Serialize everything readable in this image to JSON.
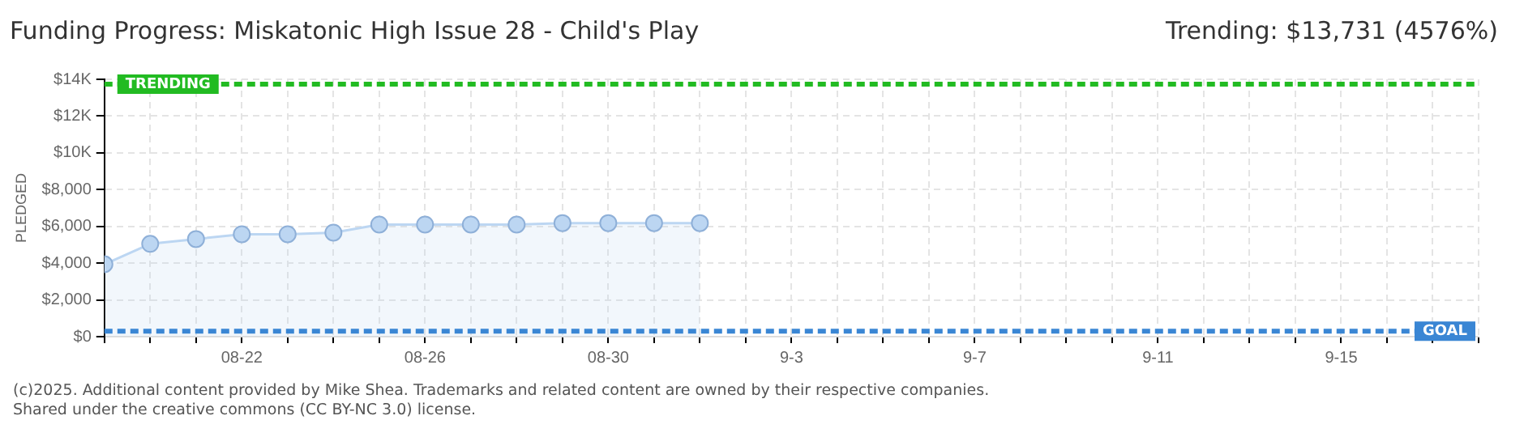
{
  "chart_data": {
    "type": "area",
    "title": "Funding Progress: Miskatonic High Issue 28 - Child's Play",
    "subtitle": "Trending: $13,731 (4576%)",
    "ylabel": "PLEDGED",
    "annotations": [
      "(c)2025. Additional content provided by Mike Shea. Trademarks and related content are owned by their respective companies.",
      "Shared under the creative commons (CC BY-NC 3.0) license."
    ],
    "x": [
      "2025-08-19",
      "2025-08-20",
      "2025-08-21",
      "2025-08-22",
      "2025-08-23",
      "2025-08-24",
      "2025-08-25",
      "2025-08-26",
      "2025-08-27",
      "2025-08-28",
      "2025-08-29",
      "2025-08-30",
      "2025-08-31",
      "2025-09-01"
    ],
    "series": [
      {
        "color": "#bcd6f2",
        "values": [
          3940,
          5050,
          5310,
          5570,
          5570,
          5660,
          6100,
          6100,
          6100,
          6100,
          6180,
          6180,
          6180,
          6180
        ]
      }
    ],
    "xlim": [
      "2025-08-19",
      "2025-09-18"
    ],
    "xticks": [
      {
        "value": "2025-08-19",
        "label": null
      },
      {
        "value": "2025-08-20",
        "label": null
      },
      {
        "value": "2025-08-21",
        "label": null
      },
      {
        "value": "2025-08-22",
        "label": "08-22"
      },
      {
        "value": "2025-08-23",
        "label": null
      },
      {
        "value": "2025-08-24",
        "label": null
      },
      {
        "value": "2025-08-25",
        "label": null
      },
      {
        "value": "2025-08-26",
        "label": "08-26"
      },
      {
        "value": "2025-08-27",
        "label": null
      },
      {
        "value": "2025-08-28",
        "label": null
      },
      {
        "value": "2025-08-29",
        "label": null
      },
      {
        "value": "2025-08-30",
        "label": "08-30"
      },
      {
        "value": "2025-08-31",
        "label": null
      },
      {
        "value": "2025-09-01",
        "label": null
      },
      {
        "value": "2025-09-02",
        "label": null
      },
      {
        "value": "2025-09-03",
        "label": "9-3"
      },
      {
        "value": "2025-09-04",
        "label": null
      },
      {
        "value": "2025-09-05",
        "label": null
      },
      {
        "value": "2025-09-06",
        "label": null
      },
      {
        "value": "2025-09-07",
        "label": "9-7"
      },
      {
        "value": "2025-09-08",
        "label": null
      },
      {
        "value": "2025-09-09",
        "label": null
      },
      {
        "value": "2025-09-10",
        "label": null
      },
      {
        "value": "2025-09-11",
        "label": "9-11"
      },
      {
        "value": "2025-09-12",
        "label": null
      },
      {
        "value": "2025-09-13",
        "label": null
      },
      {
        "value": "2025-09-14",
        "label": null
      },
      {
        "value": "2025-09-15",
        "label": "9-15"
      },
      {
        "value": "2025-09-16",
        "label": null
      },
      {
        "value": "2025-09-17",
        "label": null
      },
      {
        "value": "2025-09-18",
        "label": null
      }
    ],
    "ylim": [
      0,
      14000
    ],
    "yticks": [
      {
        "value": 0,
        "label": "$0"
      },
      {
        "value": 2000,
        "label": "$2,000"
      },
      {
        "value": 4000,
        "label": "$4,000"
      },
      {
        "value": 6000,
        "label": "$6,000"
      },
      {
        "value": 8000,
        "label": "$8,000"
      },
      {
        "value": 10000,
        "label": "$10K"
      },
      {
        "value": 12000,
        "label": "$12K"
      },
      {
        "value": 14000,
        "label": "$14K"
      }
    ],
    "ref_lines": [
      {
        "axis": "y",
        "value": 13731,
        "label": "TRENDING",
        "color": "#22bb22",
        "line_style": "dashed"
      },
      {
        "axis": "y",
        "value": 300,
        "label": "GOAL",
        "color": "#3a86d4",
        "line_style": "dashed"
      }
    ],
    "grid": true,
    "legend": false,
    "marker": "circle",
    "line_style": "solid"
  }
}
